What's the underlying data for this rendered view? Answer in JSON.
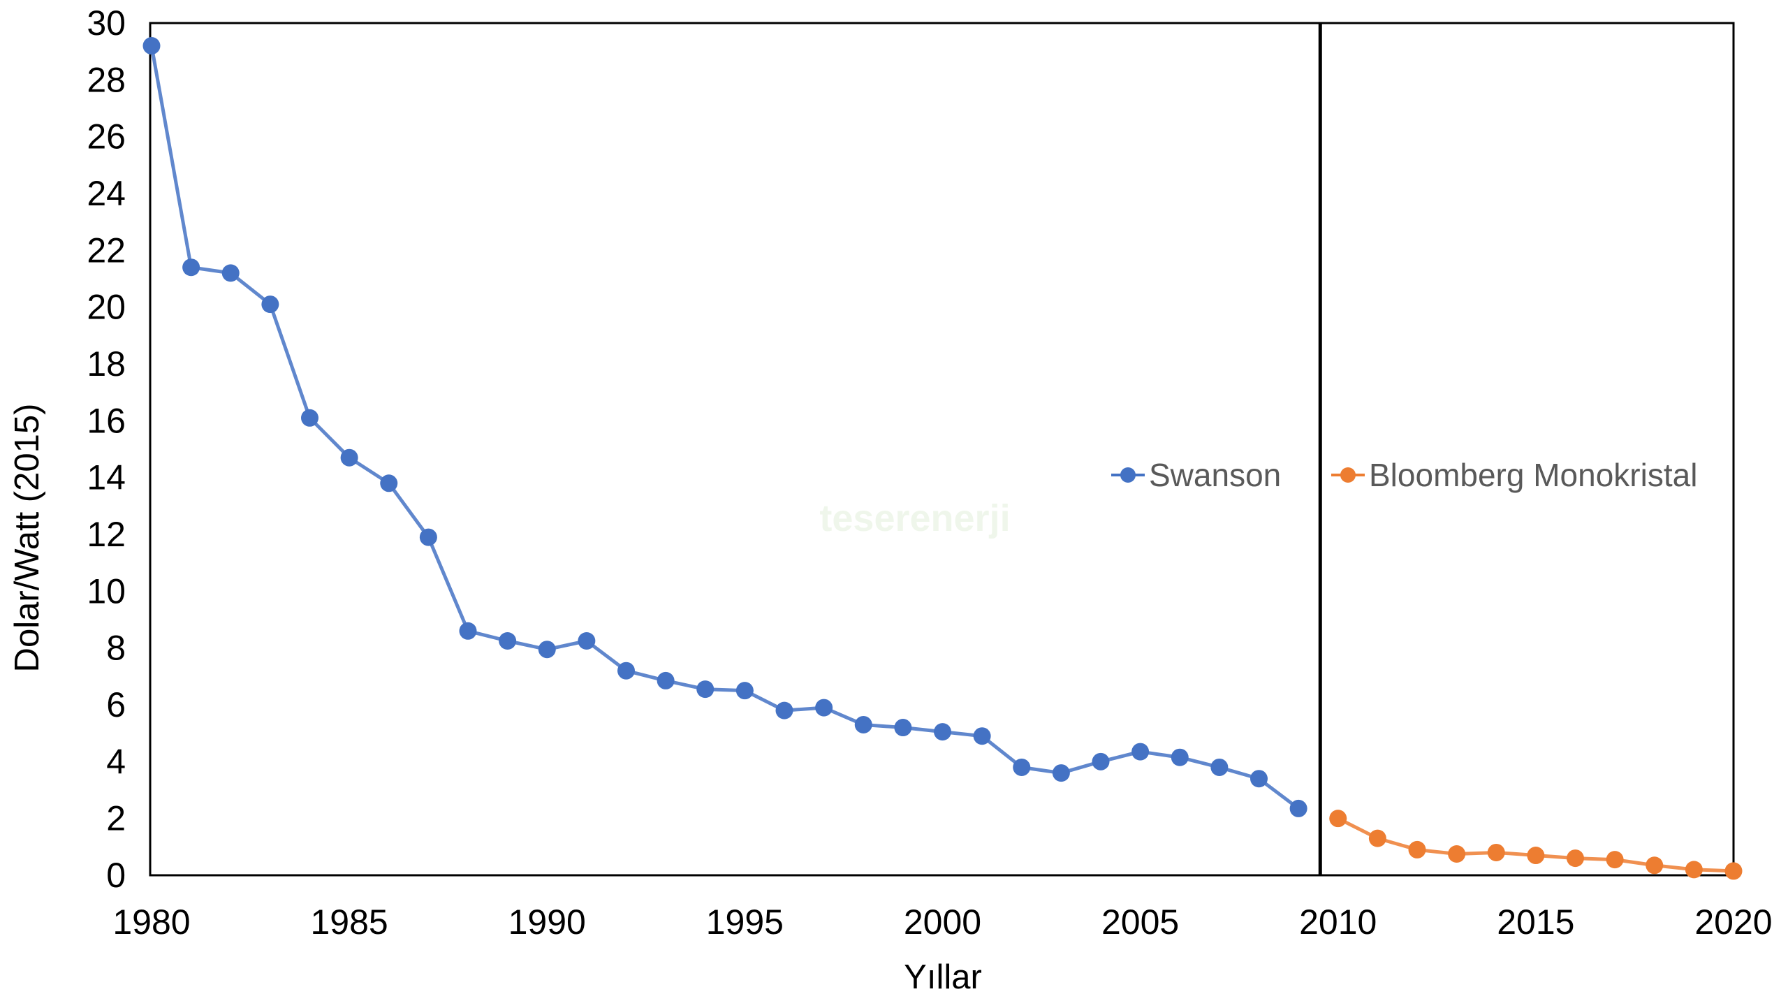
{
  "watermark": {
    "text": "teserenerji",
    "color": "#e9f3e3"
  },
  "chart_data": {
    "type": "line",
    "title": "",
    "xlabel": "Yıllar",
    "ylabel": "Dolar/Watt (2015)",
    "xlim": [
      1980,
      2020
    ],
    "ylim": [
      0,
      30
    ],
    "grid": "off",
    "legend_position": "center-right",
    "x_ticks": [
      1980,
      1985,
      1990,
      1995,
      2000,
      2005,
      2010,
      2015,
      2020
    ],
    "y_ticks": [
      0,
      2,
      4,
      6,
      8,
      10,
      12,
      14,
      16,
      18,
      20,
      22,
      24,
      26,
      28,
      30
    ],
    "text_color": "#000000",
    "legend_text_color": "#595959",
    "axis_line_color": "#000000",
    "annotations": [
      {
        "type": "vline",
        "x": 2009.55,
        "color": "#000000",
        "width": 5
      }
    ],
    "series": [
      {
        "name": "Swanson",
        "color": "#4472C4",
        "x": [
          1980,
          1981,
          1982,
          1983,
          1984,
          1985,
          1986,
          1987,
          1988,
          1989,
          1990,
          1991,
          1992,
          1993,
          1994,
          1995,
          1996,
          1997,
          1998,
          1999,
          2000,
          2001,
          2002,
          2003,
          2004,
          2005,
          2006,
          2007,
          2008,
          2009
        ],
        "values": [
          29.2,
          21.4,
          21.2,
          20.1,
          16.1,
          14.7,
          13.8,
          11.9,
          8.6,
          8.25,
          7.95,
          8.25,
          7.2,
          6.85,
          6.55,
          6.5,
          5.8,
          5.9,
          5.3,
          5.2,
          5.05,
          4.9,
          3.8,
          3.6,
          4.0,
          4.35,
          4.15,
          3.8,
          3.4,
          2.35
        ]
      },
      {
        "name": "Bloomberg Monokristal",
        "color": "#ED7D31",
        "x": [
          2010,
          2011,
          2012,
          2013,
          2014,
          2015,
          2016,
          2017,
          2018,
          2019,
          2020
        ],
        "values": [
          2.0,
          1.3,
          0.9,
          0.75,
          0.8,
          0.7,
          0.6,
          0.55,
          0.35,
          0.2,
          0.15
        ]
      }
    ]
  }
}
